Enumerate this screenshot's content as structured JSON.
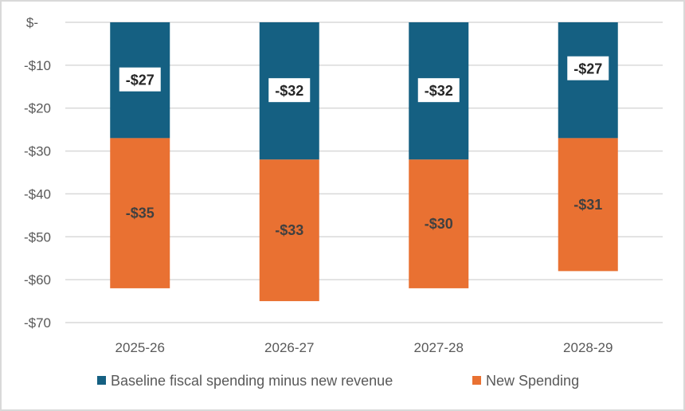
{
  "chart_data": {
    "type": "bar",
    "stacked": true,
    "title": "",
    "xlabel": "",
    "ylabel": "",
    "categories": [
      "2025-26",
      "2026-27",
      "2027-28",
      "2028-29"
    ],
    "series": [
      {
        "name": "Baseline fiscal spending minus new revenue",
        "color": "#156082",
        "values": [
          -27,
          -32,
          -32,
          -27
        ],
        "labels": [
          "-$27",
          "-$32",
          "-$32",
          "-$27"
        ]
      },
      {
        "name": "New Spending",
        "color": "#E97132",
        "values": [
          -35,
          -33,
          -30,
          -31
        ],
        "labels": [
          "-$35",
          "-$33",
          "-$30",
          "-$31"
        ]
      }
    ],
    "ylim": [
      -70,
      0
    ],
    "yticks": [
      0,
      -10,
      -20,
      -30,
      -40,
      -50,
      -60,
      -70
    ],
    "ytick_labels": [
      "$-",
      "-$10",
      "-$20",
      "-$30",
      "-$40",
      "-$50",
      "-$60",
      "-$70"
    ],
    "grid": true,
    "legend": "bottom"
  }
}
